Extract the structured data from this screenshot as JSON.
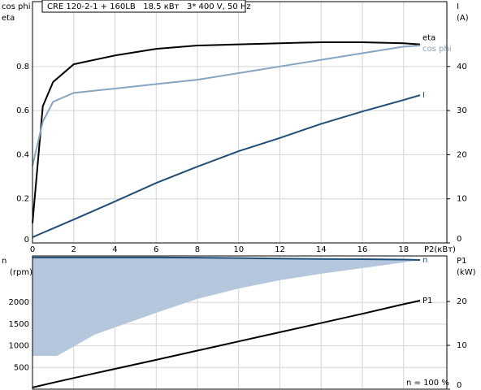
{
  "chart_data": [
    {
      "type": "line",
      "title": "CRE 120-2-1 + 160LB   18.5 кВт   3* 400 V, 50 Hz",
      "ylabel": [
        "cos phi",
        "eta"
      ],
      "y2label": [
        "I",
        "(A)"
      ],
      "xlabel": "P2(кВт)",
      "x": [
        0,
        0.5,
        1,
        2,
        4,
        6,
        8,
        10,
        12,
        14,
        16,
        18,
        18.8
      ],
      "series": [
        {
          "name": "eta",
          "color": "#000000",
          "values": [
            0.09,
            0.62,
            0.73,
            0.81,
            0.85,
            0.88,
            0.895,
            0.9,
            0.905,
            0.91,
            0.91,
            0.905,
            0.9
          ]
        },
        {
          "name": "cos phi",
          "color": "#86a5c3",
          "values": [
            0.35,
            0.55,
            0.64,
            0.68,
            0.7,
            0.72,
            0.74,
            0.77,
            0.8,
            0.83,
            0.86,
            0.89,
            0.895
          ]
        },
        {
          "name": "I",
          "color": "#1f4e79",
          "axis": "y2",
          "values": [
            1.3,
            2.3,
            3.3,
            5.3,
            9.4,
            13.6,
            17.3,
            20.8,
            23.8,
            27,
            29.8,
            32.4,
            33.5
          ]
        }
      ],
      "xlim": [
        0,
        20.1
      ],
      "xticks": [
        0,
        2,
        4,
        6,
        8,
        10,
        12,
        14,
        16,
        18
      ],
      "ylim": [
        0,
        1.094
      ],
      "yticks": [
        0,
        0.2,
        0.4,
        0.6,
        0.8
      ],
      "y2lim": [
        0,
        54.7
      ],
      "y2ticks": [
        0,
        10,
        20,
        30,
        40
      ],
      "grid": true
    },
    {
      "type": "line",
      "ylabel": [
        "n",
        "(rpm)"
      ],
      "y2label": [
        "P1",
        "(kW)"
      ],
      "annotation": "n  = 100 %",
      "x": [
        0,
        1.2,
        3,
        6,
        8,
        10,
        12,
        14,
        16,
        18,
        18.8
      ],
      "series": [
        {
          "name": "n",
          "color": "#1f4e79",
          "band_color": "#b4c7dc",
          "values": [
            3034,
            3034,
            3034,
            3034,
            3030,
            3020,
            3010,
            3000,
            2995,
            2985,
            2977
          ],
          "band_low": [
            768,
            768,
            1255,
            1760,
            2080,
            2320,
            2510,
            2660,
            2790,
            2920,
            2977
          ]
        },
        {
          "name": "P1",
          "color": "#000000",
          "axis": "y2",
          "values": [
            0.4,
            1.7,
            3.6,
            6.7,
            8.8,
            10.9,
            13.0,
            15.1,
            17.2,
            19.4,
            20.2
          ]
        }
      ],
      "xlim": [
        0,
        20.1
      ],
      "xticks": [
        0,
        2,
        4,
        6,
        8,
        10,
        12,
        14,
        16,
        18
      ],
      "ylim": [
        0,
        3070
      ],
      "yticks": [
        500,
        1000,
        1500,
        2000
      ],
      "y2lim": [
        0,
        30.4
      ],
      "y2ticks": [
        0,
        10,
        20
      ],
      "grid": true
    }
  ]
}
